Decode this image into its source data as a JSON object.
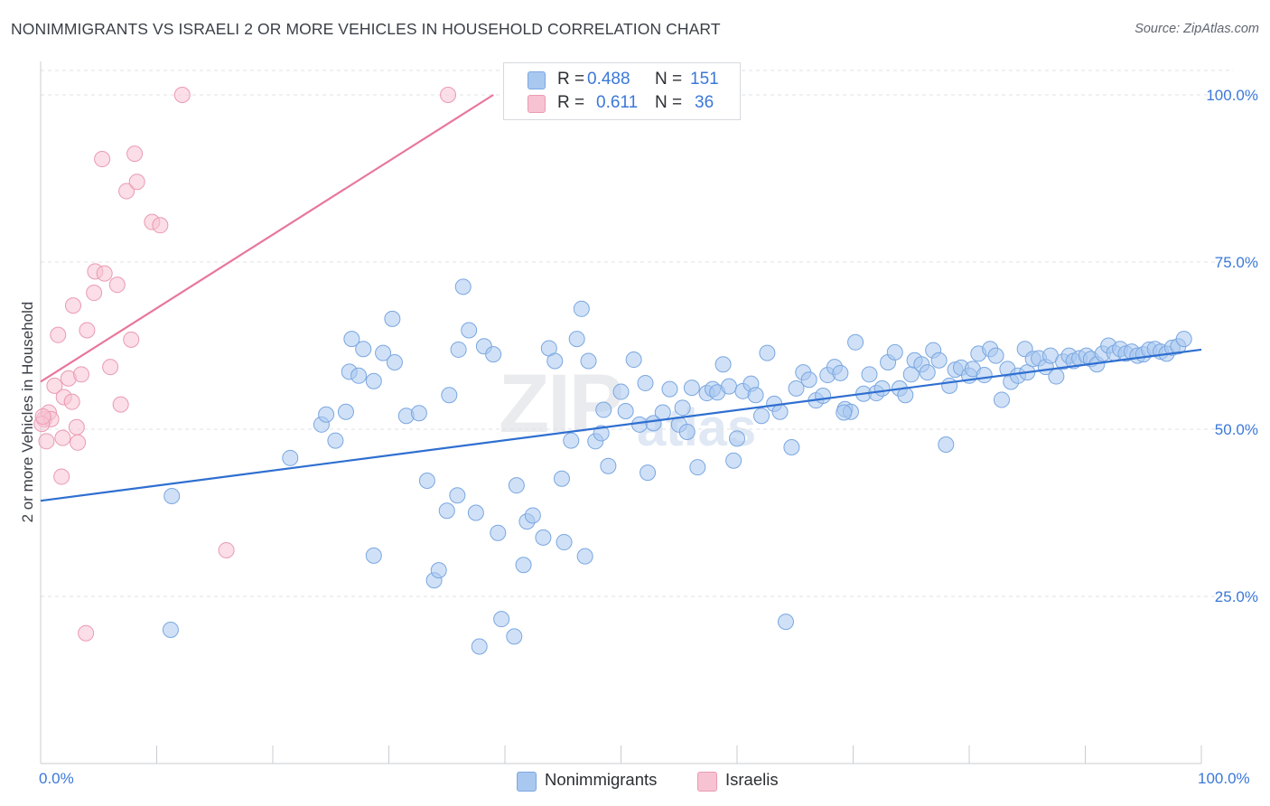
{
  "title": "NONIMMIGRANTS VS ISRAELI 2 OR MORE VEHICLES IN HOUSEHOLD CORRELATION CHART",
  "source": "Source: ZipAtlas.com",
  "watermark": {
    "zip": "ZIP",
    "atlas": "atlas"
  },
  "legend": {
    "rows": [
      {
        "r_label": "R =",
        "r_value": "0.488",
        "n_label": "N =",
        "n_value": "151",
        "color": "#a9c8f0"
      },
      {
        "r_label": "R =",
        "r_value": "0.611",
        "n_label": "N =",
        "n_value": "36",
        "color": "#f5b7cb"
      }
    ]
  },
  "bottom_legend": [
    {
      "label": "Nonimmigrants",
      "color": "#a9c8f0"
    },
    {
      "label": "Israelis",
      "color": "#f5b7cb"
    }
  ],
  "colors": {
    "blue_fill": "#a9c8f0",
    "blue_stroke": "#7aa7e0",
    "blue_line": "#2f6fd0",
    "pink_fill": "#f7c3d3",
    "pink_stroke": "#ea9ab2",
    "pink_line": "#e8779b",
    "tick_text": "#3b78d8",
    "grid": "#dfe2e6"
  },
  "chart_data": {
    "type": "scatter",
    "title": "NONIMMIGRANTS VS ISRAELI 2 OR MORE VEHICLES IN HOUSEHOLD CORRELATION CHART",
    "xlabel": "",
    "ylabel": "2 or more Vehicles in Household",
    "xlim": [
      0,
      100
    ],
    "ylim": [
      0,
      105
    ],
    "x_tick_labels": [
      "0.0%",
      "100.0%"
    ],
    "y_ticks": [
      25,
      50,
      75,
      100
    ],
    "y_tick_labels": [
      "25.0%",
      "50.0%",
      "75.0%",
      "100.0%"
    ],
    "grid": true,
    "legend_position": "top-center",
    "series": [
      {
        "name": "Nonimmigrants",
        "r": 0.488,
        "n": 151,
        "trend": {
          "x": [
            0,
            100
          ],
          "y": [
            39.3,
            61.9
          ]
        },
        "points": [
          [
            11.3,
            40.0
          ],
          [
            11.2,
            20.0
          ],
          [
            21.5,
            45.7
          ],
          [
            24.2,
            50.7
          ],
          [
            24.6,
            52.2
          ],
          [
            25.4,
            48.3
          ],
          [
            26.3,
            52.6
          ],
          [
            26.6,
            58.6
          ],
          [
            26.8,
            63.5
          ],
          [
            27.4,
            58.0
          ],
          [
            27.8,
            62.0
          ],
          [
            28.7,
            57.2
          ],
          [
            28.7,
            31.1
          ],
          [
            29.5,
            61.4
          ],
          [
            30.3,
            66.5
          ],
          [
            30.5,
            60.0
          ],
          [
            31.5,
            52.0
          ],
          [
            32.6,
            52.4
          ],
          [
            33.3,
            42.3
          ],
          [
            33.9,
            27.4
          ],
          [
            34.3,
            28.9
          ],
          [
            35.0,
            37.8
          ],
          [
            35.2,
            55.1
          ],
          [
            35.9,
            40.1
          ],
          [
            36.4,
            71.3
          ],
          [
            36.9,
            64.8
          ],
          [
            37.5,
            37.5
          ],
          [
            37.8,
            17.5
          ],
          [
            38.2,
            62.4
          ],
          [
            39.0,
            61.2
          ],
          [
            39.4,
            34.5
          ],
          [
            39.7,
            21.6
          ],
          [
            40.8,
            19.0
          ],
          [
            41.0,
            41.6
          ],
          [
            41.6,
            29.7
          ],
          [
            41.9,
            36.2
          ],
          [
            42.4,
            37.1
          ],
          [
            43.3,
            33.8
          ],
          [
            43.8,
            62.1
          ],
          [
            44.3,
            60.2
          ],
          [
            44.9,
            42.6
          ],
          [
            45.1,
            33.1
          ],
          [
            45.7,
            48.3
          ],
          [
            46.2,
            63.5
          ],
          [
            46.6,
            68.0
          ],
          [
            46.9,
            31.0
          ],
          [
            47.2,
            60.2
          ],
          [
            47.8,
            48.2
          ],
          [
            48.3,
            49.4
          ],
          [
            48.5,
            52.9
          ],
          [
            48.9,
            44.5
          ],
          [
            50.0,
            55.6
          ],
          [
            50.4,
            52.7
          ],
          [
            51.1,
            60.4
          ],
          [
            51.6,
            50.7
          ],
          [
            52.1,
            56.9
          ],
          [
            52.3,
            43.5
          ],
          [
            52.8,
            50.9
          ],
          [
            53.6,
            52.5
          ],
          [
            54.2,
            56.0
          ],
          [
            55.0,
            50.7
          ],
          [
            55.3,
            53.2
          ],
          [
            55.7,
            49.6
          ],
          [
            56.1,
            56.2
          ],
          [
            56.6,
            44.3
          ],
          [
            57.4,
            55.4
          ],
          [
            57.9,
            56.0
          ],
          [
            58.3,
            55.5
          ],
          [
            58.8,
            59.7
          ],
          [
            59.3,
            56.4
          ],
          [
            59.7,
            45.3
          ],
          [
            60.0,
            48.6
          ],
          [
            60.5,
            55.7
          ],
          [
            61.2,
            56.8
          ],
          [
            61.6,
            55.1
          ],
          [
            62.1,
            52.0
          ],
          [
            62.6,
            61.4
          ],
          [
            63.2,
            53.8
          ],
          [
            63.7,
            52.6
          ],
          [
            64.2,
            21.2
          ],
          [
            64.7,
            47.3
          ],
          [
            65.1,
            56.1
          ],
          [
            65.7,
            58.5
          ],
          [
            66.2,
            57.4
          ],
          [
            66.8,
            54.3
          ],
          [
            67.4,
            55.0
          ],
          [
            67.8,
            58.1
          ],
          [
            68.4,
            59.3
          ],
          [
            68.9,
            58.4
          ],
          [
            69.3,
            53.0
          ],
          [
            69.8,
            52.6
          ],
          [
            70.2,
            63.0
          ],
          [
            70.9,
            55.3
          ],
          [
            71.4,
            58.2
          ],
          [
            72.0,
            55.4
          ],
          [
            72.5,
            56.1
          ],
          [
            73.0,
            60.0
          ],
          [
            73.6,
            61.5
          ],
          [
            74.0,
            56.1
          ],
          [
            74.5,
            55.1
          ],
          [
            75.0,
            58.2
          ],
          [
            75.3,
            60.3
          ],
          [
            75.9,
            59.7
          ],
          [
            76.4,
            58.5
          ],
          [
            76.9,
            61.8
          ],
          [
            77.4,
            60.3
          ],
          [
            78.0,
            47.7
          ],
          [
            78.3,
            56.5
          ],
          [
            78.8,
            58.9
          ],
          [
            79.3,
            59.2
          ],
          [
            80.0,
            58.0
          ],
          [
            80.3,
            59.0
          ],
          [
            80.8,
            61.3
          ],
          [
            81.3,
            58.1
          ],
          [
            81.8,
            62.0
          ],
          [
            82.3,
            61.0
          ],
          [
            82.8,
            54.4
          ],
          [
            83.3,
            59.0
          ],
          [
            83.6,
            57.1
          ],
          [
            84.2,
            58.0
          ],
          [
            84.8,
            62.0
          ],
          [
            85.0,
            58.5
          ],
          [
            85.5,
            60.5
          ],
          [
            86.0,
            60.6
          ],
          [
            86.6,
            59.3
          ],
          [
            87.0,
            61.0
          ],
          [
            87.5,
            57.9
          ],
          [
            88.1,
            60.1
          ],
          [
            88.6,
            61.0
          ],
          [
            89.0,
            60.2
          ],
          [
            89.5,
            60.6
          ],
          [
            90.1,
            61.0
          ],
          [
            90.5,
            60.5
          ],
          [
            91.0,
            59.7
          ],
          [
            91.5,
            61.3
          ],
          [
            92.0,
            62.5
          ],
          [
            92.5,
            61.4
          ],
          [
            93.0,
            62.0
          ],
          [
            93.5,
            61.3
          ],
          [
            94.0,
            61.6
          ],
          [
            94.5,
            61.0
          ],
          [
            95.0,
            61.2
          ],
          [
            95.5,
            61.9
          ],
          [
            96.0,
            62.0
          ],
          [
            96.5,
            61.6
          ],
          [
            97.0,
            61.3
          ],
          [
            97.5,
            62.2
          ],
          [
            98.0,
            62.4
          ],
          [
            98.5,
            63.5
          ],
          [
            69.2,
            52.5
          ],
          [
            36.0,
            61.9
          ]
        ]
      },
      {
        "name": "Israelis",
        "r": 0.611,
        "n": 36,
        "trend": {
          "x": [
            0,
            39
          ],
          "y": [
            57.1,
            100.0
          ]
        },
        "points": [
          [
            0.3,
            51.5
          ],
          [
            0.5,
            48.2
          ],
          [
            0.7,
            52.5
          ],
          [
            0.9,
            51.5
          ],
          [
            1.2,
            56.5
          ],
          [
            1.5,
            64.1
          ],
          [
            1.8,
            42.9
          ],
          [
            1.9,
            48.7
          ],
          [
            2.0,
            54.8
          ],
          [
            2.4,
            57.6
          ],
          [
            2.7,
            54.1
          ],
          [
            2.8,
            68.5
          ],
          [
            3.1,
            50.3
          ],
          [
            3.2,
            48.0
          ],
          [
            3.5,
            58.2
          ],
          [
            4.0,
            64.8
          ],
          [
            4.6,
            70.4
          ],
          [
            4.7,
            73.6
          ],
          [
            5.3,
            90.4
          ],
          [
            5.5,
            73.3
          ],
          [
            6.0,
            59.3
          ],
          [
            6.6,
            71.6
          ],
          [
            6.9,
            53.7
          ],
          [
            7.4,
            85.6
          ],
          [
            7.8,
            63.4
          ],
          [
            8.1,
            91.2
          ],
          [
            8.3,
            87.0
          ],
          [
            9.6,
            81.0
          ],
          [
            10.3,
            80.5
          ],
          [
            12.2,
            100.0
          ],
          [
            16.0,
            31.9
          ],
          [
            3.9,
            19.5
          ],
          [
            35.1,
            100.0
          ],
          [
            44.1,
            100.0
          ],
          [
            0.1,
            50.8
          ],
          [
            0.2,
            51.9
          ]
        ]
      }
    ]
  }
}
